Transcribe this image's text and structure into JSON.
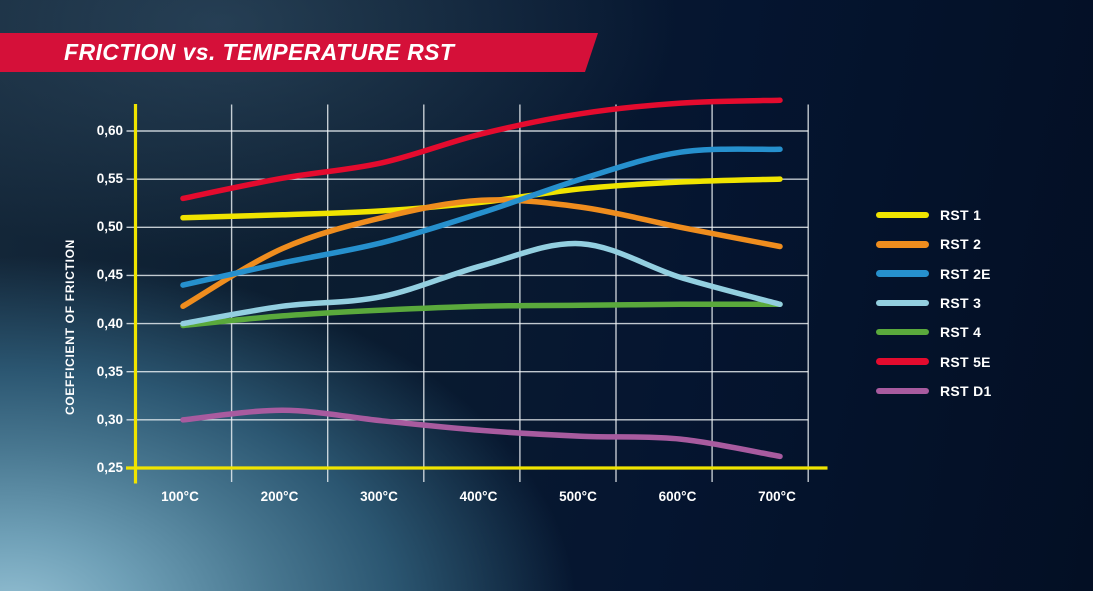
{
  "title": "FRICTION vs. TEMPERATURE RST",
  "colors": {
    "banner": "#d51039",
    "axis": "#f0e400",
    "grid": "rgba(240,245,248,0.8)",
    "text": "#ffffff"
  },
  "chart_data": {
    "type": "line",
    "title": "FRICTION vs. TEMPERATURE RST",
    "xlabel": "",
    "ylabel": "COEFFICIENT OF FRICTION",
    "categories": [
      "100°C",
      "200°C",
      "300°C",
      "400°C",
      "500°C",
      "600°C",
      "700°C"
    ],
    "x_values": [
      100,
      200,
      300,
      400,
      500,
      600,
      700
    ],
    "ylim": [
      0.25,
      0.635
    ],
    "yticks": [
      0.6,
      0.55,
      0.5,
      0.45,
      0.4,
      0.35,
      0.3,
      0.25
    ],
    "ytick_labels": [
      "0,60",
      "0,55",
      "0,50",
      "0,45",
      "0,40",
      "0,35",
      "0,30",
      "0,25"
    ],
    "grid": true,
    "legend_position": "right",
    "series": [
      {
        "name": "RST 1",
        "color": "#f0e400",
        "values": [
          0.51,
          0.513,
          0.517,
          0.526,
          0.54,
          0.547,
          0.55
        ]
      },
      {
        "name": "RST 2",
        "color": "#ef8d1e",
        "values": [
          0.418,
          0.478,
          0.51,
          0.528,
          0.521,
          0.5,
          0.48
        ]
      },
      {
        "name": "RST 2E",
        "color": "#2690cd",
        "values": [
          0.44,
          0.463,
          0.484,
          0.515,
          0.55,
          0.578,
          0.581
        ]
      },
      {
        "name": "RST 3",
        "color": "#93cfe0",
        "values": [
          0.4,
          0.418,
          0.428,
          0.46,
          0.483,
          0.448,
          0.42
        ]
      },
      {
        "name": "RST 4",
        "color": "#5aa93c",
        "values": [
          0.398,
          0.408,
          0.414,
          0.418,
          0.419,
          0.42,
          0.42
        ]
      },
      {
        "name": "RST 5E",
        "color": "#e40b2e",
        "values": [
          0.53,
          0.551,
          0.567,
          0.597,
          0.618,
          0.629,
          0.632
        ]
      },
      {
        "name": "RST D1",
        "color": "#a85b9f",
        "values": [
          0.3,
          0.31,
          0.299,
          0.289,
          0.283,
          0.28,
          0.262
        ]
      }
    ]
  }
}
